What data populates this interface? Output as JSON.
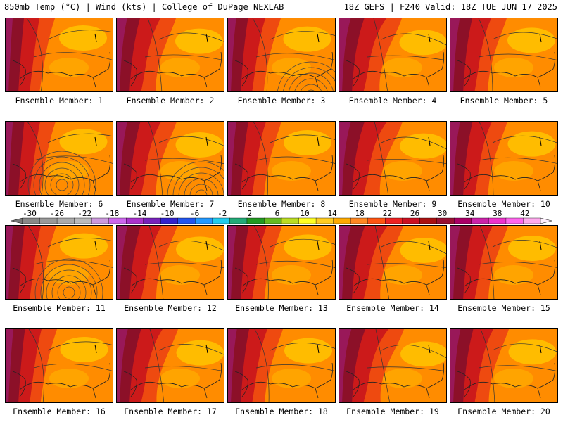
{
  "header": {
    "left": "850mb Temp (°C) | Wind (kts) | College of DuPage NEXLAB",
    "right": "18Z GEFS | F240 Valid: 18Z TUE JUN 17 2025"
  },
  "members": [
    "Ensemble Member: 1",
    "Ensemble Member: 2",
    "Ensemble Member: 3",
    "Ensemble Member: 4",
    "Ensemble Member: 5",
    "Ensemble Member: 6",
    "Ensemble Member: 7",
    "Ensemble Member: 8",
    "Ensemble Member: 9",
    "Ensemble Member: 10",
    "Ensemble Member: 11",
    "Ensemble Member: 12",
    "Ensemble Member: 13",
    "Ensemble Member: 14",
    "Ensemble Member: 15",
    "Ensemble Member: 16",
    "Ensemble Member: 17",
    "Ensemble Member: 18",
    "Ensemble Member: 19",
    "Ensemble Member: 20"
  ],
  "colorbar": {
    "labels": [
      "-30",
      "-26",
      "-22",
      "-18",
      "-14",
      "-10",
      "-6",
      "-2",
      "2",
      "6",
      "10",
      "14",
      "18",
      "22",
      "26",
      "30",
      "34",
      "38",
      "42"
    ],
    "colors": [
      "#888888",
      "#999999",
      "#aaaaaa",
      "#bbbbbb",
      "#cc99dd",
      "#cc66ee",
      "#aa33cc",
      "#7722bb",
      "#3322cc",
      "#2255ee",
      "#2299ff",
      "#22ccee",
      "#22aa77",
      "#229922",
      "#66bb22",
      "#bbdd22",
      "#ffff22",
      "#ffcc22",
      "#ffaa00",
      "#ff8822",
      "#ff5511",
      "#ee2222",
      "#cc1122",
      "#aa1111",
      "#991133",
      "#aa0066",
      "#cc22aa",
      "#ee33cc",
      "#ff66ee",
      "#ffaaee"
    ]
  }
}
